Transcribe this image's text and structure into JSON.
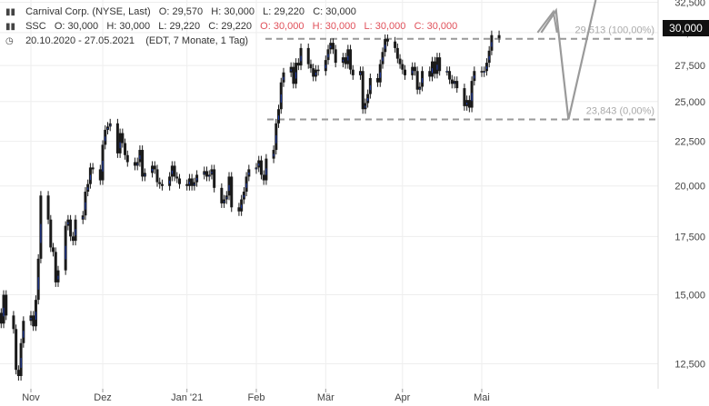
{
  "header": {
    "line1": {
      "name": "Carnival Corp. (NYSE, Last)",
      "open": "O: 29,570",
      "high": "H: 30,000",
      "low": "L: 29,220",
      "close": "C: 30,000"
    },
    "line2": {
      "name": "SSC",
      "open": "O: 30,000",
      "high": "H: 30,000",
      "low": "L: 29,220",
      "close": "C: 29,220",
      "open_red": "O: 30,000",
      "high_red": "H: 30,000",
      "low_red": "L: 30,000",
      "close_red": "C: 30,000"
    },
    "line3": {
      "range": "20.10.2020 - 27.05.2021",
      "meta": "(EDT, 7 Monate, 1 Tag)"
    }
  },
  "price_tag": "30,000",
  "colors": {
    "background": "#ffffff",
    "grid": "#eeeeee",
    "candle_body": "#1a1a1a",
    "candle_up_mark": "#1f3fb5",
    "projection": "#9a9a9a",
    "level_line": "#999999",
    "level_label": "#aaaaaa",
    "price_tag_bg": "#111111",
    "highlight_red": "#e0505a"
  },
  "chart_data": {
    "type": "candlestick",
    "title": "Carnival Corp. (NYSE, Last)",
    "y_scale": "log",
    "ylim": [
      11700,
      32700
    ],
    "y_ticks": [
      {
        "value": 12500,
        "label": "12,500"
      },
      {
        "value": 15000,
        "label": "15,000"
      },
      {
        "value": 17500,
        "label": "17,500"
      },
      {
        "value": 20000,
        "label": "20,000"
      },
      {
        "value": 22500,
        "label": "22,500"
      },
      {
        "value": 25000,
        "label": "25,000"
      },
      {
        "value": 27500,
        "label": "27,500"
      },
      {
        "value": 30000,
        "label": "30,000"
      },
      {
        "value": 32500,
        "label": "32,500"
      }
    ],
    "x_ticks": [
      {
        "date": "2020-11-02",
        "label": "Nov"
      },
      {
        "date": "2020-12-01",
        "label": "Dez"
      },
      {
        "date": "2021-01-04",
        "label": "Jan '21"
      },
      {
        "date": "2021-02-01",
        "label": "Feb"
      },
      {
        "date": "2021-03-01",
        "label": "Mär"
      },
      {
        "date": "2021-04-01",
        "label": "Apr"
      },
      {
        "date": "2021-05-03",
        "label": "Mai"
      }
    ],
    "levels": [
      {
        "value": 29513,
        "label": "29,513 (100,00%)"
      },
      {
        "value": 23843,
        "label": "23,843 (0,00%)"
      }
    ],
    "closes": [
      14300,
      13900,
      15000,
      14200,
      13700,
      12300,
      12100,
      13200,
      14000,
      14200,
      13800,
      14800,
      16500,
      19500,
      18300,
      17000,
      16800,
      15500,
      16000,
      18000,
      18300,
      17500,
      17300,
      18300,
      18500,
      19700,
      20100,
      21000,
      20900,
      20300,
      22300,
      23200,
      23400,
      23600,
      21800,
      23000,
      22400,
      21700,
      21300,
      21100,
      21300,
      22000,
      20500,
      20700,
      21100,
      20900,
      20200,
      20100,
      20000,
      20500,
      21100,
      20500,
      20400,
      20100,
      20000,
      20400,
      20000,
      20200,
      20600,
      20800,
      20500,
      20600,
      20900,
      19900,
      19100,
      19300,
      19500,
      20500,
      18900,
      18700,
      19300,
      19700,
      20500,
      20900,
      21000,
      21400,
      20600,
      20300,
      21500,
      22000,
      23600,
      24500,
      26300,
      27000,
      27400,
      26200,
      27700,
      27500,
      28800,
      27600,
      27300,
      26700,
      27200,
      27100,
      27900,
      28700,
      29200,
      28700,
      27700,
      28100,
      27600,
      28700,
      27200,
      26800,
      27100,
      24500,
      24900,
      25500,
      26600,
      26300,
      27600,
      28500,
      29500,
      29300,
      28800,
      28000,
      27600,
      27200,
      26800,
      27400,
      27100,
      25800,
      26000,
      27100,
      26700,
      27800,
      26900,
      28100,
      27100,
      27100,
      26500,
      26200,
      26400,
      25900,
      24700,
      25100,
      24600,
      26400,
      27100,
      27000,
      27100,
      27700,
      28600,
      29800,
      29570
    ],
    "projection": [
      {
        "date": "2021-05-27",
        "value": 30000
      },
      {
        "date": "2021-06-02",
        "value": 31800
      },
      {
        "date": "2021-06-07",
        "value": 23843
      },
      {
        "date": "2021-06-18",
        "value": 32700
      }
    ],
    "last_price": 30000
  }
}
